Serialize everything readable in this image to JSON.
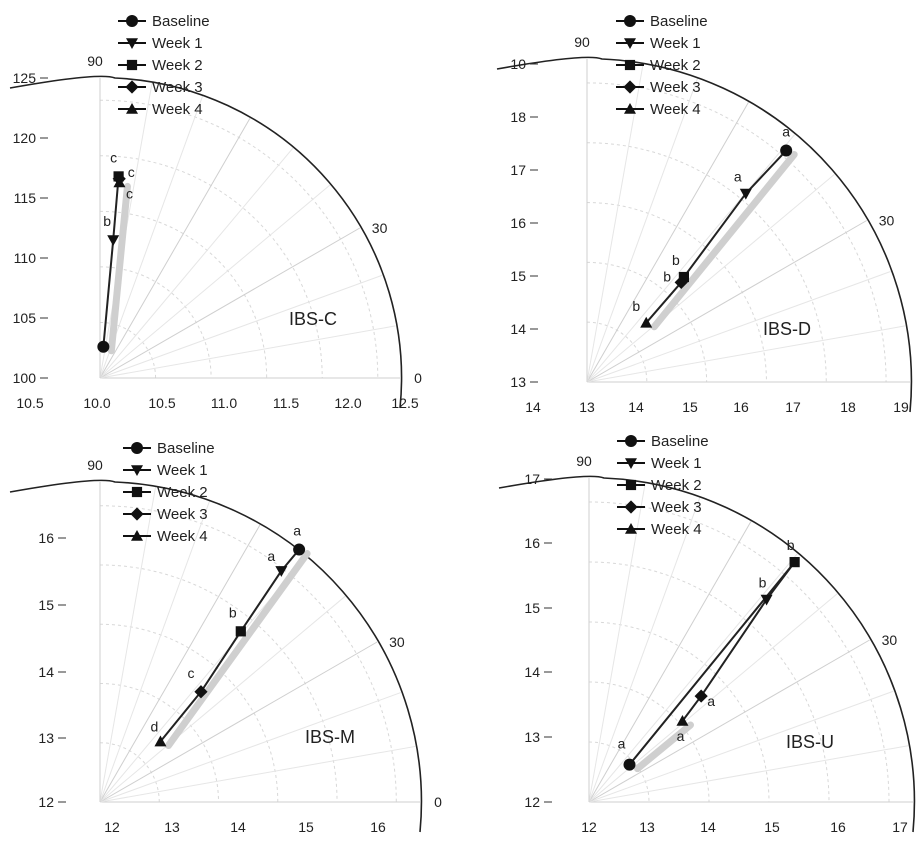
{
  "chart_data": [
    {
      "type": "scatter",
      "subtype": "polar",
      "title": "IBS-C",
      "r_axis_ticks": [
        "100",
        "105",
        "110",
        "115",
        "120",
        "125"
      ],
      "x_axis_ticks": [
        "10.5",
        "10.0",
        "10.5",
        "11.0",
        "11.5",
        "12.0",
        "12.5"
      ],
      "angle_labels": [
        "90",
        "30",
        "0"
      ],
      "legend": [
        "Baseline",
        "Week 1",
        "Week 2",
        "Week 3",
        "Week 4"
      ],
      "points": [
        {
          "series": "Baseline",
          "x": 10.28,
          "y": 102.6,
          "label": ""
        },
        {
          "series": "Week 1",
          "x": 11.1,
          "y": 111.5,
          "label": "b"
        },
        {
          "series": "Week 2",
          "x": 11.55,
          "y": 116.8,
          "label": "c"
        },
        {
          "series": "Week 3",
          "x": 11.6,
          "y": 116.6,
          "label": "c"
        },
        {
          "series": "Week 4",
          "x": 11.62,
          "y": 116.3,
          "label": "c"
        }
      ],
      "path_order": [
        "Baseline",
        "Week 1",
        "Week 2",
        "Week 3",
        "Week 4"
      ]
    },
    {
      "type": "scatter",
      "subtype": "polar",
      "title": "IBS-D",
      "r_axis_ticks": [
        "13",
        "14",
        "15",
        "16",
        "17",
        "18",
        "10"
      ],
      "x_axis_ticks": [
        "14",
        "13",
        "14",
        "15",
        "16",
        "17",
        "18",
        "19"
      ],
      "angle_labels": [
        "90",
        "30",
        "0"
      ],
      "legend": [
        "Baseline",
        "Week 1",
        "Week 2",
        "Week 3",
        "Week 4"
      ],
      "points": [
        {
          "series": "Baseline",
          "x": 16.7,
          "y": 17.3,
          "label": "a"
        },
        {
          "series": "Week 1",
          "x": 15.95,
          "y": 16.5,
          "label": "a"
        },
        {
          "series": "Week 2",
          "x": 14.8,
          "y": 14.95,
          "label": "b"
        },
        {
          "series": "Week 3",
          "x": 14.75,
          "y": 14.85,
          "label": "b"
        },
        {
          "series": "Week 4",
          "x": 14.1,
          "y": 14.1,
          "label": "b"
        }
      ],
      "path_order": [
        "Baseline",
        "Week 1",
        "Week 2",
        "Week 3",
        "Week 4"
      ]
    },
    {
      "type": "scatter",
      "subtype": "polar",
      "title": "IBS-M",
      "r_axis_ticks": [
        "12",
        "13",
        "14",
        "15",
        "16"
      ],
      "x_axis_ticks": [
        "12",
        "13",
        "14",
        "15",
        "16"
      ],
      "angle_labels": [
        "90",
        "30",
        "0"
      ],
      "legend": [
        "Baseline",
        "Week 1",
        "Week 2",
        "Week 3",
        "Week 4"
      ],
      "points": [
        {
          "series": "Baseline",
          "x": 14.8,
          "y": 15.55,
          "label": "a"
        },
        {
          "series": "Week 1",
          "x": 14.55,
          "y": 15.25,
          "label": "a"
        },
        {
          "series": "Week 2",
          "x": 13.98,
          "y": 14.4,
          "label": "b"
        },
        {
          "series": "Week 3",
          "x": 13.42,
          "y": 13.55,
          "label": "c"
        },
        {
          "series": "Week 4",
          "x": 12.85,
          "y": 12.85,
          "label": "d"
        }
      ],
      "path_order": [
        "Baseline",
        "Week 1",
        "Week 2",
        "Week 3",
        "Week 4"
      ]
    },
    {
      "type": "scatter",
      "subtype": "polar",
      "title": "IBS-U",
      "r_axis_ticks": [
        "12",
        "13",
        "14",
        "15",
        "16",
        "17"
      ],
      "x_axis_ticks": [
        "12",
        "13",
        "14",
        "15",
        "16",
        "17"
      ],
      "angle_labels": [
        "90",
        "30",
        "0"
      ],
      "legend": [
        "Baseline",
        "Week 1",
        "Week 2",
        "Week 3",
        "Week 4"
      ],
      "points": [
        {
          "series": "Baseline",
          "x": 12.65,
          "y": 12.6,
          "label": "a"
        },
        {
          "series": "Week 1",
          "x": 14.85,
          "y": 15.25,
          "label": "b"
        },
        {
          "series": "Week 2",
          "x": 15.3,
          "y": 15.85,
          "label": "b"
        },
        {
          "series": "Week 3",
          "x": 13.8,
          "y": 13.7,
          "label": "a"
        },
        {
          "series": "Week 4",
          "x": 13.5,
          "y": 13.3,
          "label": "a"
        }
      ],
      "path_order": [
        "Baseline",
        "Week 2",
        "Week 1",
        "Week 3",
        "Week 4"
      ]
    }
  ]
}
